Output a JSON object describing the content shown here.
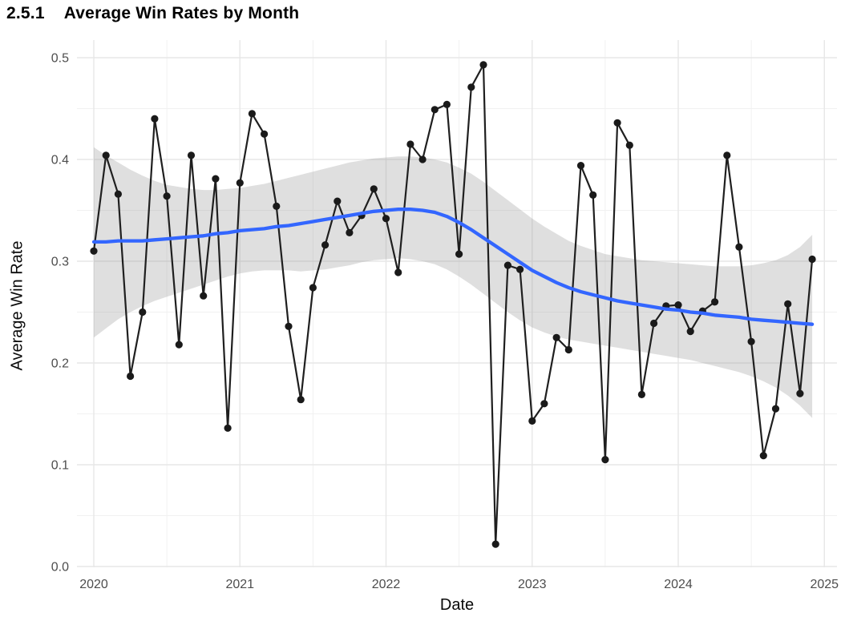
{
  "header": {
    "section_number": "2.5.1",
    "title": "Average Win Rates by Month"
  },
  "chart_data": {
    "type": "line",
    "title": "Average Win Rates by Month",
    "xlabel": "Date",
    "ylabel": "Average Win Rate",
    "legend_position": "none",
    "grid": true,
    "ylim": [
      0.0,
      0.5
    ],
    "xlim_years": [
      2020,
      2025
    ],
    "x_tick_labels": [
      "2020",
      "2021",
      "2022",
      "2023",
      "2024",
      "2025"
    ],
    "y_tick_labels": [
      "0.0",
      "0.1",
      "0.2",
      "0.3",
      "0.4",
      "0.5"
    ],
    "colors": {
      "point": "#1a1a1a",
      "line": "#1f1f1f",
      "smooth": "#3366FF",
      "band": "#8c8c8c",
      "band_opacity": 0.28,
      "grid_major": "#e7e7e7",
      "grid_minor": "#f1f1f1",
      "tick_text": "#4d4d4d",
      "title_text": "#000000"
    },
    "months": [
      "2020-01",
      "2020-02",
      "2020-03",
      "2020-04",
      "2020-05",
      "2020-06",
      "2020-07",
      "2020-08",
      "2020-09",
      "2020-10",
      "2020-11",
      "2020-12",
      "2021-01",
      "2021-02",
      "2021-03",
      "2021-04",
      "2021-05",
      "2021-06",
      "2021-07",
      "2021-08",
      "2021-09",
      "2021-10",
      "2021-11",
      "2021-12",
      "2022-01",
      "2022-02",
      "2022-03",
      "2022-04",
      "2022-05",
      "2022-06",
      "2022-07",
      "2022-08",
      "2022-09",
      "2022-10",
      "2022-11",
      "2022-12",
      "2023-01",
      "2023-02",
      "2023-03",
      "2023-04",
      "2023-05",
      "2023-06",
      "2023-07",
      "2023-08",
      "2023-09",
      "2023-10",
      "2023-11",
      "2023-12",
      "2024-01",
      "2024-02",
      "2024-03",
      "2024-04",
      "2024-05",
      "2024-06",
      "2024-07",
      "2024-08",
      "2024-09",
      "2024-10",
      "2024-11",
      "2024-12"
    ],
    "series": [
      {
        "name": "average_win_rate",
        "values": [
          0.31,
          0.404,
          0.366,
          0.187,
          0.25,
          0.44,
          0.364,
          0.218,
          0.404,
          0.266,
          0.381,
          0.136,
          0.377,
          0.445,
          0.425,
          0.354,
          0.236,
          0.164,
          0.274,
          0.316,
          0.359,
          0.328,
          0.345,
          0.371,
          0.342,
          0.289,
          0.415,
          0.4,
          0.449,
          0.454,
          0.307,
          0.471,
          0.493,
          0.022,
          0.296,
          0.292,
          0.143,
          0.16,
          0.225,
          0.213,
          0.394,
          0.365,
          0.105,
          0.436,
          0.414,
          0.169,
          0.239,
          0.256,
          0.257,
          0.231,
          0.251,
          0.26,
          0.404,
          0.314,
          0.221,
          0.109,
          0.155,
          0.258,
          0.17,
          0.302
        ]
      },
      {
        "name": "loess_trend",
        "values": [
          0.319,
          0.319,
          0.32,
          0.32,
          0.32,
          0.321,
          0.322,
          0.323,
          0.324,
          0.325,
          0.327,
          0.328,
          0.33,
          0.331,
          0.332,
          0.334,
          0.335,
          0.337,
          0.339,
          0.341,
          0.343,
          0.345,
          0.347,
          0.349,
          0.35,
          0.351,
          0.351,
          0.35,
          0.348,
          0.344,
          0.338,
          0.331,
          0.323,
          0.315,
          0.307,
          0.299,
          0.291,
          0.285,
          0.279,
          0.274,
          0.27,
          0.267,
          0.264,
          0.261,
          0.259,
          0.257,
          0.255,
          0.253,
          0.252,
          0.25,
          0.249,
          0.247,
          0.246,
          0.245,
          0.243,
          0.242,
          0.241,
          0.24,
          0.239,
          0.238
        ]
      }
    ],
    "ci_band": {
      "upper": [
        0.412,
        0.404,
        0.397,
        0.39,
        0.384,
        0.379,
        0.375,
        0.373,
        0.371,
        0.37,
        0.37,
        0.371,
        0.372,
        0.374,
        0.376,
        0.379,
        0.382,
        0.385,
        0.388,
        0.391,
        0.394,
        0.397,
        0.399,
        0.401,
        0.402,
        0.403,
        0.403,
        0.402,
        0.4,
        0.397,
        0.392,
        0.386,
        0.378,
        0.369,
        0.36,
        0.351,
        0.342,
        0.334,
        0.327,
        0.32,
        0.315,
        0.311,
        0.307,
        0.305,
        0.303,
        0.301,
        0.3,
        0.299,
        0.298,
        0.297,
        0.296,
        0.295,
        0.295,
        0.295,
        0.296,
        0.298,
        0.301,
        0.306,
        0.314,
        0.326
      ],
      "lower": [
        0.225,
        0.234,
        0.243,
        0.25,
        0.256,
        0.261,
        0.265,
        0.269,
        0.273,
        0.277,
        0.281,
        0.285,
        0.288,
        0.29,
        0.291,
        0.291,
        0.291,
        0.29,
        0.291,
        0.292,
        0.294,
        0.296,
        0.299,
        0.301,
        0.302,
        0.303,
        0.302,
        0.3,
        0.297,
        0.292,
        0.285,
        0.277,
        0.268,
        0.259,
        0.25,
        0.242,
        0.235,
        0.23,
        0.226,
        0.223,
        0.221,
        0.219,
        0.217,
        0.215,
        0.213,
        0.211,
        0.209,
        0.207,
        0.205,
        0.203,
        0.2,
        0.197,
        0.194,
        0.191,
        0.187,
        0.182,
        0.176,
        0.168,
        0.158,
        0.146
      ]
    }
  }
}
